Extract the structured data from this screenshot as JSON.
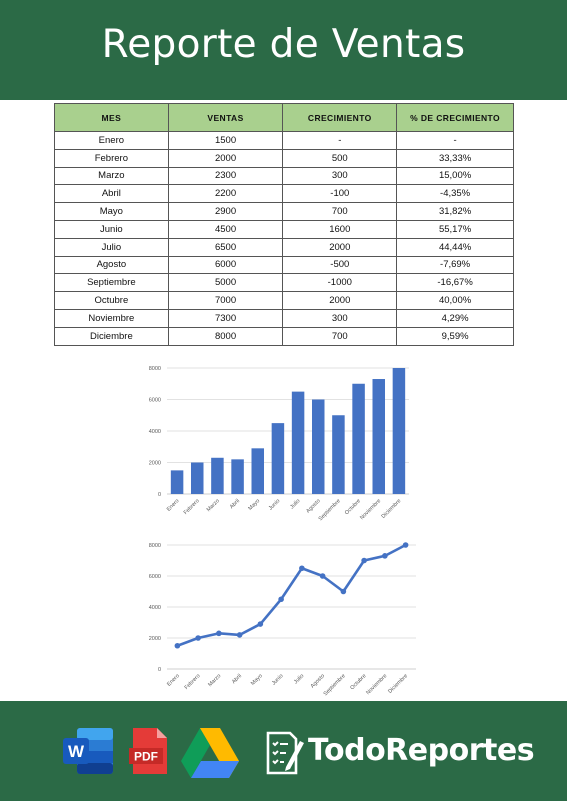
{
  "header": {
    "title": "Reporte de Ventas"
  },
  "table": {
    "columns": [
      "MES",
      "VENTAS",
      "CRECIMIENTO",
      "% DE CRECIMIENTO"
    ],
    "rows": [
      [
        "Enero",
        "1500",
        "-",
        "-"
      ],
      [
        "Febrero",
        "2000",
        "500",
        "33,33%"
      ],
      [
        "Marzo",
        "2300",
        "300",
        "15,00%"
      ],
      [
        "Abril",
        "2200",
        "-100",
        "-4,35%"
      ],
      [
        "Mayo",
        "2900",
        "700",
        "31,82%"
      ],
      [
        "Junio",
        "4500",
        "1600",
        "55,17%"
      ],
      [
        "Julio",
        "6500",
        "2000",
        "44,44%"
      ],
      [
        "Agosto",
        "6000",
        "-500",
        "-7,69%"
      ],
      [
        "Septiembre",
        "5000",
        "-1000",
        "-16,67%"
      ],
      [
        "Octubre",
        "7000",
        "2000",
        "40,00%"
      ],
      [
        "Noviembre",
        "7300",
        "300",
        "4,29%"
      ],
      [
        "Diciembre",
        "8000",
        "700",
        "9,59%"
      ]
    ]
  },
  "chart_data": [
    {
      "type": "bar",
      "categories": [
        "Enero",
        "Febrero",
        "Marzo",
        "Abril",
        "Mayo",
        "Junio",
        "Julio",
        "Agosto",
        "Septiembre",
        "Octubre",
        "Noviembre",
        "Diciembre"
      ],
      "values": [
        1500,
        2000,
        2300,
        2200,
        2900,
        4500,
        6500,
        6000,
        5000,
        7000,
        7300,
        8000
      ],
      "yticks": [
        "0",
        "2000",
        "4000",
        "6000",
        "8000"
      ],
      "ylim": [
        0,
        8000
      ],
      "grid": true,
      "color": "#4472c4"
    },
    {
      "type": "line",
      "categories": [
        "Enero",
        "Febrero",
        "Marzo",
        "Abril",
        "Mayo",
        "Junio",
        "Julio",
        "Agosto",
        "Septiembre",
        "Octubre",
        "Noviembre",
        "Diciembre"
      ],
      "values": [
        1500,
        2000,
        2300,
        2200,
        2900,
        4500,
        6500,
        6000,
        5000,
        7000,
        7300,
        8000
      ],
      "yticks": [
        "0",
        "2000",
        "4000",
        "6000",
        "8000"
      ],
      "ylim": [
        0,
        8000
      ],
      "grid": true,
      "color": "#4472c4"
    }
  ],
  "footer": {
    "brand": "TodoReportes",
    "icons": [
      "word-icon",
      "pdf-icon",
      "google-drive-icon",
      "todoreportes-logo-icon"
    ],
    "pdf_label": "PDF",
    "word_letter": "W"
  },
  "colors": {
    "header_bg": "#2b6a46",
    "table_header_bg": "#a9d08e",
    "series": "#4472c4"
  }
}
